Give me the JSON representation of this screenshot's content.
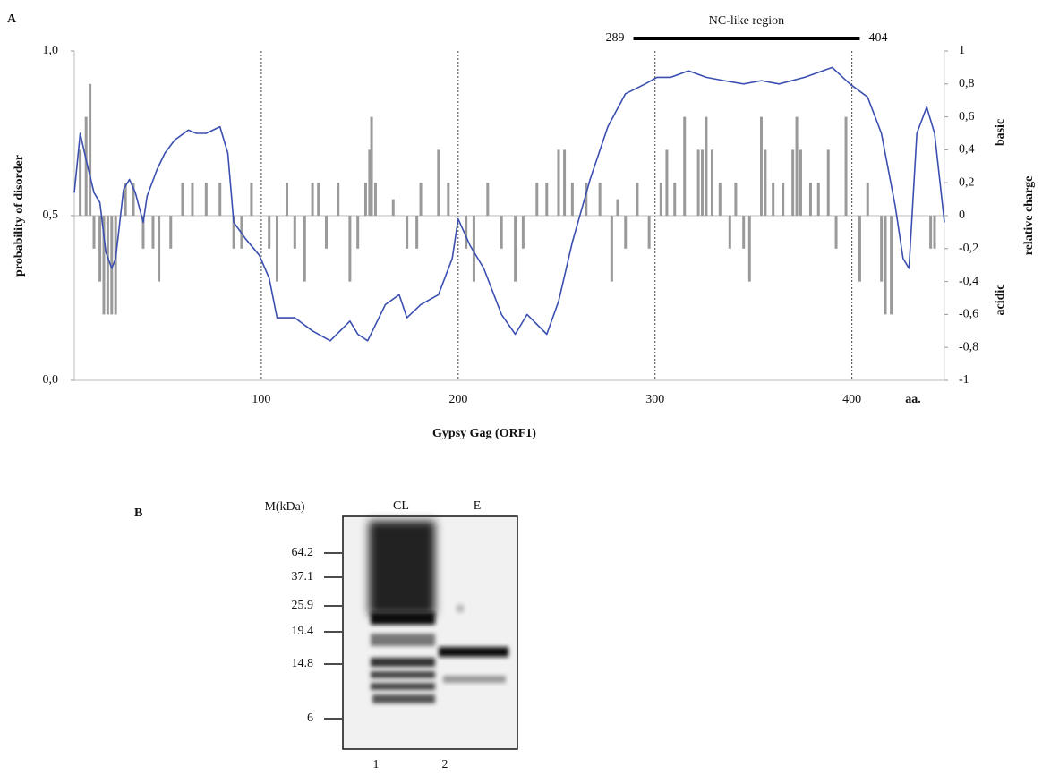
{
  "chart_data": {
    "type": "line",
    "panel_label": "A",
    "x_label": "Gypsy Gag (ORF1)",
    "x_unit": "aa.",
    "y_label": "probability of disorder",
    "y2_label": "relative charge",
    "y2_upper_note": "basic",
    "y2_lower_note": "acidic",
    "annotation": {
      "label": "NC-like region",
      "start": 289,
      "end": 404
    },
    "xlim": [
      5,
      447
    ],
    "xticks": [
      100,
      200,
      300,
      400
    ],
    "grid": true,
    "ylim": [
      0,
      1
    ],
    "yticks": [
      {
        "value": 0,
        "label": "0,0"
      },
      {
        "value": 0.5,
        "label": "0,5"
      },
      {
        "value": 1,
        "label": "1,0"
      }
    ],
    "y2lim": [
      -1,
      1
    ],
    "y2ticks": [
      -1,
      {
        "value": -0.8,
        "label": "-0,8"
      },
      {
        "value": -0.6,
        "label": "-0,6"
      },
      {
        "value": -0.4,
        "label": "-0,4"
      },
      {
        "value": -0.2,
        "label": "-0,2"
      },
      0,
      {
        "value": 0.2,
        "label": "0,2"
      },
      {
        "value": 0.4,
        "label": "0,4"
      },
      {
        "value": 0.6,
        "label": "0,6"
      },
      {
        "value": 0.8,
        "label": "0,8"
      },
      1
    ],
    "series": [
      {
        "type": "bar",
        "axis": "y2",
        "color": "#9a9a9a",
        "x": [
          8,
          11,
          13,
          15,
          18,
          20,
          22,
          24,
          26,
          31,
          35,
          40,
          45,
          48,
          54,
          60,
          65,
          72,
          79,
          86,
          90,
          95,
          104,
          108,
          113,
          117,
          122,
          126,
          129,
          133,
          139,
          145,
          149,
          153,
          155,
          156,
          158,
          167,
          174,
          179,
          181,
          190,
          195,
          204,
          208,
          215,
          222,
          229,
          233,
          240,
          245,
          251,
          254,
          258,
          265,
          272,
          278,
          281,
          285,
          291,
          297,
          303,
          306,
          310,
          315,
          322,
          324,
          326,
          329,
          333,
          338,
          341,
          345,
          348,
          354,
          356,
          360,
          365,
          370,
          372,
          374,
          379,
          383,
          388,
          392,
          397,
          404,
          408,
          415,
          417,
          420,
          440,
          442
        ],
        "values": [
          0.4,
          0.6,
          0.8,
          -0.2,
          -0.4,
          -0.6,
          -0.6,
          -0.6,
          -0.6,
          0.2,
          0.2,
          -0.2,
          -0.2,
          -0.4,
          -0.2,
          0.2,
          0.2,
          0.2,
          0.2,
          -0.2,
          -0.2,
          0.2,
          -0.2,
          -0.4,
          0.2,
          -0.2,
          -0.4,
          0.2,
          0.2,
          -0.2,
          0.2,
          -0.4,
          -0.2,
          0.2,
          0.4,
          0.6,
          0.2,
          0.1,
          -0.2,
          -0.2,
          0.2,
          0.4,
          0.2,
          -0.2,
          -0.4,
          0.2,
          -0.2,
          -0.4,
          -0.2,
          0.2,
          0.2,
          0.4,
          0.4,
          0.2,
          0.2,
          0.2,
          -0.4,
          0.1,
          -0.2,
          0.2,
          -0.2,
          0.2,
          0.4,
          0.2,
          0.6,
          0.4,
          0.4,
          0.6,
          0.4,
          0.2,
          -0.2,
          0.2,
          -0.2,
          -0.4,
          0.6,
          0.4,
          0.2,
          0.2,
          0.4,
          0.6,
          0.4,
          0.2,
          0.2,
          0.4,
          -0.2,
          0.6,
          -0.4,
          0.2,
          -0.4,
          -0.6,
          -0.6,
          -0.2,
          -0.2
        ]
      },
      {
        "type": "line",
        "color": "#3a4fb0",
        "x": [
          5,
          8,
          11,
          15,
          18,
          21,
          24,
          26,
          30,
          33,
          36,
          40,
          42,
          47,
          51,
          56,
          63,
          67,
          72,
          79,
          83,
          86,
          92,
          99,
          104,
          108,
          117,
          126,
          135,
          145,
          149,
          154,
          163,
          170,
          174,
          181,
          190,
          197,
          200,
          206,
          213,
          222,
          229,
          235,
          245,
          251,
          258,
          267,
          276,
          285,
          295,
          301,
          308,
          317,
          326,
          335,
          345,
          354,
          363,
          376,
          390,
          399,
          408,
          415,
          422,
          426,
          429,
          433,
          438,
          442,
          447
        ],
        "values": [
          0.57,
          0.75,
          0.67,
          0.57,
          0.54,
          0.39,
          0.34,
          0.37,
          0.58,
          0.61,
          0.57,
          0.48,
          0.56,
          0.64,
          0.69,
          0.73,
          0.76,
          0.75,
          0.75,
          0.77,
          0.69,
          0.48,
          0.43,
          0.38,
          0.31,
          0.19,
          0.19,
          0.15,
          0.12,
          0.18,
          0.14,
          0.12,
          0.23,
          0.26,
          0.19,
          0.23,
          0.26,
          0.37,
          0.49,
          0.41,
          0.34,
          0.2,
          0.14,
          0.2,
          0.14,
          0.24,
          0.42,
          0.61,
          0.77,
          0.87,
          0.9,
          0.92,
          0.92,
          0.94,
          0.92,
          0.91,
          0.9,
          0.91,
          0.9,
          0.92,
          0.95,
          0.9,
          0.86,
          0.75,
          0.53,
          0.37,
          0.34,
          0.75,
          0.83,
          0.75,
          0.48
        ]
      }
    ]
  },
  "gel": {
    "panel_label": "B",
    "marker_title": "M(kDa)",
    "markers": [
      64.2,
      37.1,
      25.9,
      19.4,
      14.8,
      6
    ],
    "lanes": [
      {
        "label": "CL",
        "number": 1
      },
      {
        "label": "E",
        "number": 2
      }
    ]
  }
}
